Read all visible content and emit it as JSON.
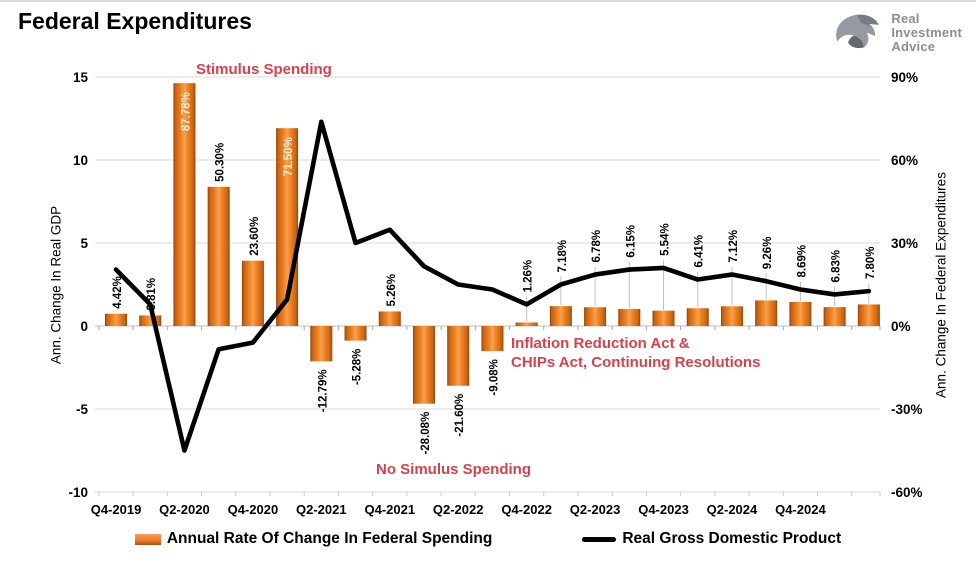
{
  "header": {
    "title": "Federal Expenditures",
    "logo": {
      "line1": "Real",
      "line2": "Investment",
      "line3": "Advice"
    }
  },
  "chart_data": {
    "type": "combo-bar-line",
    "x": [
      "Q4-2019",
      "Q1-2020",
      "Q2-2020",
      "Q3-2020",
      "Q4-2020",
      "Q1-2021",
      "Q2-2021",
      "Q3-2021",
      "Q4-2021",
      "Q1-2022",
      "Q2-2022",
      "Q3-2022",
      "Q4-2022",
      "Q1-2023",
      "Q2-2023",
      "Q3-2023",
      "Q4-2023",
      "Q1-2024",
      "Q2-2024",
      "Q3-2024",
      "Q4-2024",
      "Q1-2025",
      "Q2-2025"
    ],
    "x_tick_labels": [
      "Q4-2019",
      "Q2-2020",
      "Q4-2020",
      "Q2-2021",
      "Q4-2021",
      "Q2-2022",
      "Q4-2022",
      "Q2-2023",
      "Q4-2023",
      "Q2-2024",
      "Q4-2024"
    ],
    "series": [
      {
        "name": "Annual Rate Of Change In Federal Spending",
        "type": "bar",
        "axis": "right",
        "unit": "%",
        "values": [
          4.42,
          3.81,
          87.78,
          50.3,
          23.6,
          71.5,
          -12.79,
          -5.28,
          5.26,
          -28.08,
          -21.6,
          -9.08,
          1.26,
          7.18,
          6.78,
          6.15,
          5.54,
          6.41,
          7.12,
          9.26,
          8.69,
          6.83,
          7.8
        ],
        "labels": [
          "4.42%",
          "3.81%",
          "87.78%",
          "50.30%",
          "23.60%",
          "71.50%",
          "-12.79%",
          "-5.28%",
          "5.26%",
          "-28.08%",
          "-21.60%",
          "-9.08%",
          "1.26%",
          "7.18%",
          "6.78%",
          "6.15%",
          "5.54%",
          "6.41%",
          "7.12%",
          "9.26%",
          "8.69%",
          "6.83%",
          "7.80%"
        ]
      },
      {
        "name": "Real Gross Domestic Product",
        "type": "line",
        "axis": "left",
        "values": [
          3.4,
          1.3,
          -7.5,
          -1.4,
          -1.0,
          1.6,
          12.3,
          5.0,
          5.8,
          3.6,
          2.5,
          2.2,
          1.3,
          2.5,
          3.1,
          3.4,
          3.5,
          2.8,
          3.1,
          2.7,
          2.2,
          1.9,
          2.1
        ]
      }
    ],
    "left_axis": {
      "title": "Ann. Change In Real GDP",
      "ticks": [
        "15",
        "10",
        "5",
        "0",
        "-5",
        "-10"
      ],
      "range": [
        -10,
        15
      ],
      "grid": true
    },
    "right_axis": {
      "title": "Ann. Change In Federal Expenditures",
      "ticks": [
        "90%",
        "60%",
        "30%",
        "0%",
        "-30%",
        "-60%"
      ],
      "range": [
        -60,
        90
      ]
    },
    "annotations": [
      {
        "id": "stimulus",
        "text": "Stimulus Spending"
      },
      {
        "id": "ira-chips",
        "text": "Inflation Reduction Act &\nCHIPs Act, Continuing Resolutions"
      },
      {
        "id": "no-stimulus",
        "text": "No Simulus Spending"
      }
    ],
    "legend_position": "bottom",
    "colors": {
      "bar": "#ED7D31",
      "bar_dark": "#9C4A06",
      "bar_light": "#F9A050",
      "line": "#000000",
      "annotation": "#D4424E",
      "grid": "#D9D9D9",
      "inside_label": "#FDF0DC"
    }
  }
}
